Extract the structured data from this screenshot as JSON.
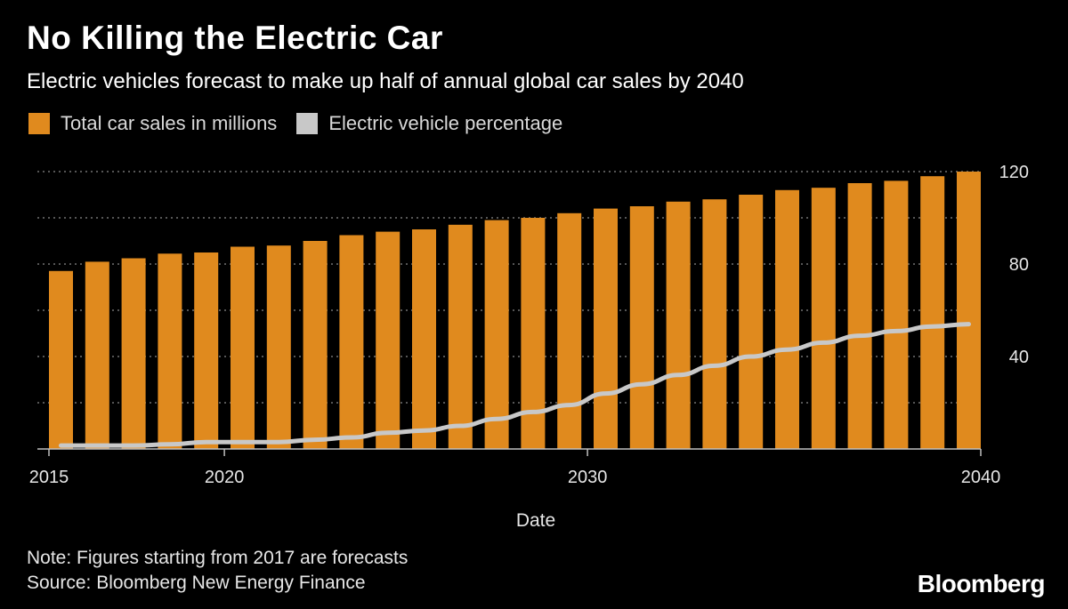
{
  "colors": {
    "bar": "#e08a1e",
    "line": "#c8c8c8",
    "grid": "#8a8a8a",
    "axis": "#bfbfbf"
  },
  "footer": {
    "note": "Note: Figures starting from 2017 are forecasts",
    "source": "Source: Bloomberg New Energy Finance"
  },
  "brand": "Bloomberg",
  "chart_data": {
    "type": "bar",
    "title": "No Killing the Electric Car",
    "subtitle": "Electric vehicles forecast to make up half of annual global car sales by 2040",
    "xlabel": "Date",
    "ylabel": "",
    "ylim": [
      0,
      120
    ],
    "yticks": [
      "40",
      "80",
      "120"
    ],
    "yticks_values": [
      40,
      80,
      120
    ],
    "xticks": [
      "2015",
      "2020",
      "2030",
      "2040"
    ],
    "xticks_values": [
      2015,
      2020,
      2030,
      2040
    ],
    "legend": [
      "Total car sales in millions",
      "Electric vehicle percentage"
    ],
    "legend_position": "top-left",
    "grid": true,
    "categories": [
      2015,
      2016,
      2017,
      2018,
      2019,
      2020,
      2021,
      2022,
      2023,
      2024,
      2025,
      2026,
      2027,
      2028,
      2029,
      2030,
      2031,
      2032,
      2033,
      2034,
      2035,
      2036,
      2037,
      2038,
      2039,
      2040
    ],
    "series": [
      {
        "name": "Total car sales in millions",
        "type": "bar",
        "values": [
          77,
          81,
          82.5,
          84.5,
          85,
          87.5,
          88,
          90,
          92.5,
          94,
          95,
          97,
          99,
          100,
          102,
          104,
          105,
          107,
          108,
          110,
          112,
          113,
          115,
          116,
          118,
          120
        ]
      },
      {
        "name": "Electric vehicle percentage",
        "type": "line",
        "values": [
          1.5,
          1.5,
          1.5,
          2,
          3,
          3,
          3,
          4,
          5,
          7,
          8,
          10,
          13,
          16,
          19,
          24,
          28,
          32,
          36,
          40,
          43,
          46,
          49,
          51,
          53,
          54
        ]
      }
    ]
  }
}
